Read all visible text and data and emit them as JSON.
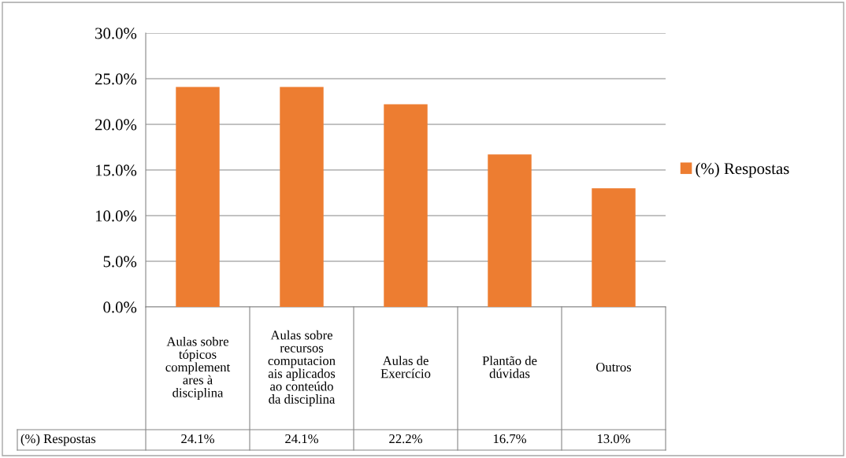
{
  "chart_data": {
    "type": "bar",
    "categories": [
      "Aulas sobre\ntópicos\ncomplement\nares à\ndisciplina",
      "Aulas sobre\nrecursos\ncomputacion\nais aplicados\nao conteúdo\nda disciplina",
      "Aulas de\nExercício",
      "Plantão de\ndúvidas",
      "Outros"
    ],
    "series": [
      {
        "name": "(%) Respostas",
        "color": "#ed7d31",
        "values": [
          24.1,
          24.1,
          22.2,
          16.7,
          13.0
        ],
        "value_labels": [
          "24.1%",
          "24.1%",
          "22.2%",
          "16.7%",
          "13.0%"
        ]
      }
    ],
    "ylim": [
      0,
      30
    ],
    "yticks": [
      {
        "value": 0,
        "label": "0.0%"
      },
      {
        "value": 5,
        "label": "5.0%"
      },
      {
        "value": 10,
        "label": "10.0%"
      },
      {
        "value": 15,
        "label": "15.0%"
      },
      {
        "value": 20,
        "label": "20.0%"
      },
      {
        "value": 25,
        "label": "25.0%"
      },
      {
        "value": 30,
        "label": "30.0%"
      }
    ],
    "grid": "y",
    "legend": "right"
  }
}
